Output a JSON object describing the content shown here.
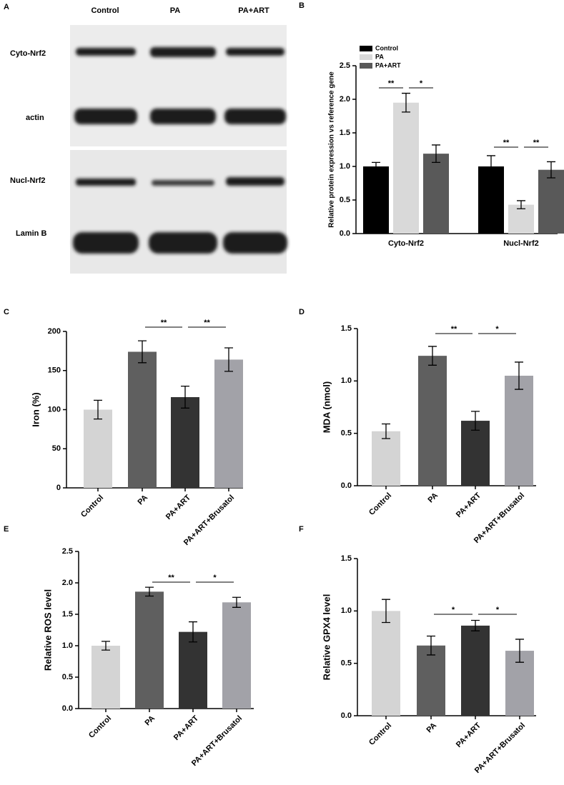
{
  "blot": {
    "panel_label": "A",
    "lanes": [
      "Control",
      "PA",
      "PA+ART"
    ],
    "rows": [
      "Cyto-Nrf2",
      "actin",
      "Nucl-Nrf2",
      "Lamin B"
    ]
  },
  "chart_data": [
    {
      "type": "grouped-bar",
      "panel_label": "B",
      "y_label": "Relative protein expression vs reference gene",
      "categories": [
        "Cyto-Nrf2",
        "Nucl-Nrf2"
      ],
      "series": [
        {
          "name": "Control",
          "color": "#000000",
          "values": [
            1.0,
            1.0
          ],
          "errors": [
            0.06,
            0.16
          ]
        },
        {
          "name": "PA",
          "color": "#d9d9d9",
          "values": [
            1.95,
            0.43
          ],
          "errors": [
            0.14,
            0.06
          ]
        },
        {
          "name": "PA+ART",
          "color": "#595959",
          "values": [
            1.19,
            0.95
          ],
          "errors": [
            0.13,
            0.12
          ]
        }
      ],
      "ylim": [
        0,
        2.5
      ],
      "yticks": [
        {
          "value": 0,
          "label": "0.0"
        },
        0.5,
        {
          "value": 1,
          "label": "1.0"
        },
        1.5,
        {
          "value": 2,
          "label": "2.0"
        },
        2.5
      ],
      "annotations": [
        "**",
        "*",
        "**",
        "**"
      ]
    },
    {
      "type": "bar",
      "panel_label": "C",
      "y_label": "Iron (%)",
      "categories": [
        "Control",
        "PA",
        "PA+ART",
        "PA+ART+Brusatol"
      ],
      "values": [
        100,
        174,
        116,
        164
      ],
      "errors": [
        12,
        14,
        14,
        15
      ],
      "colors": [
        "#d4d4d4",
        "#5f5f5f",
        "#333333",
        "#a2a2a8"
      ],
      "ylim": [
        0,
        200
      ],
      "yticks": [
        0,
        50,
        100,
        150,
        200
      ],
      "annotations": [
        "**",
        "**"
      ]
    },
    {
      "type": "bar",
      "panel_label": "D",
      "y_label": "MDA (nmol)",
      "categories": [
        "Control",
        "PA",
        "PA+ART",
        "PA+ART+Brusatol"
      ],
      "values": [
        0.52,
        1.24,
        0.62,
        1.05
      ],
      "errors": [
        0.07,
        0.09,
        0.09,
        0.13
      ],
      "colors": [
        "#d4d4d4",
        "#5f5f5f",
        "#333333",
        "#a2a2a8"
      ],
      "ylim": [
        0,
        1.5
      ],
      "yticks": [
        {
          "value": 0,
          "label": "0.0"
        },
        0.5,
        {
          "value": 1,
          "label": "1.0"
        },
        1.5
      ],
      "annotations": [
        "**",
        "*"
      ]
    },
    {
      "type": "bar",
      "panel_label": "E",
      "y_label": "Relative ROS level",
      "categories": [
        "Control",
        "PA",
        "PA+ART",
        "PA+ART+Brusatol"
      ],
      "values": [
        1.0,
        1.86,
        1.22,
        1.69
      ],
      "errors": [
        0.07,
        0.07,
        0.16,
        0.08
      ],
      "colors": [
        "#d4d4d4",
        "#5f5f5f",
        "#333333",
        "#a2a2a8"
      ],
      "ylim": [
        0,
        2.5
      ],
      "yticks": [
        {
          "value": 0,
          "label": "0.0"
        },
        0.5,
        {
          "value": 1,
          "label": "1.0"
        },
        1.5,
        {
          "value": 2,
          "label": "2.0"
        },
        2.5
      ],
      "annotations": [
        "**",
        "*"
      ]
    },
    {
      "type": "bar",
      "panel_label": "F",
      "y_label": "Relative GPX4 level",
      "categories": [
        "Control",
        "PA",
        "PA+ART",
        "PA+ART+Brusatol"
      ],
      "values": [
        1.0,
        0.67,
        0.86,
        0.62
      ],
      "errors": [
        0.11,
        0.09,
        0.05,
        0.11
      ],
      "colors": [
        "#d4d4d4",
        "#5f5f5f",
        "#333333",
        "#a2a2a8"
      ],
      "ylim": [
        0,
        1.5
      ],
      "yticks": [
        {
          "value": 0,
          "label": "0.0"
        },
        0.5,
        {
          "value": 1,
          "label": "1.0"
        },
        1.5
      ],
      "annotations": [
        "*",
        "*"
      ]
    }
  ]
}
